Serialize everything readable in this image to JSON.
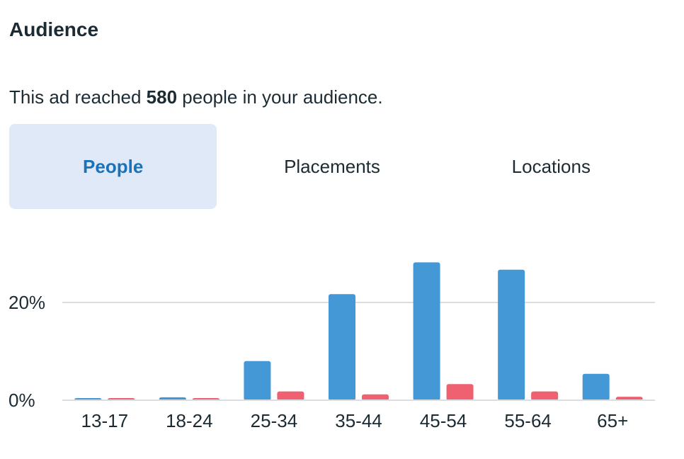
{
  "header": {
    "title": "Audience"
  },
  "summary": {
    "prefix": "This ad reached ",
    "count": "580",
    "suffix": " people in your audience."
  },
  "tabs": [
    {
      "label": "People",
      "active": true
    },
    {
      "label": "Placements",
      "active": false
    },
    {
      "label": "Locations",
      "active": false
    }
  ],
  "colors": {
    "series_1": "#4598d6",
    "series_2": "#ef6070",
    "active_tab_bg": "#e0e9f7",
    "active_tab_text": "#1a73b8"
  },
  "chart_data": {
    "type": "bar",
    "categories": [
      "13-17",
      "18-24",
      "25-34",
      "35-44",
      "45-54",
      "55-64",
      "65+"
    ],
    "series": [
      {
        "values": [
          0.2,
          0.6,
          8.0,
          21.7,
          28.2,
          26.7,
          5.4
        ]
      },
      {
        "values": [
          0.2,
          0.2,
          1.8,
          1.2,
          3.3,
          1.8,
          0.7
        ]
      }
    ],
    "yticks": [
      {
        "value": 0,
        "label": "0%"
      },
      {
        "value": 20,
        "label": "20%"
      }
    ],
    "ylim": [
      0,
      30
    ],
    "grid": true
  }
}
